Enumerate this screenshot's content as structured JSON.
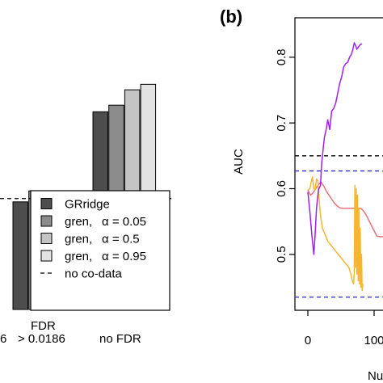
{
  "chart_data": [
    {
      "type": "bar",
      "categories": [
        "FDR > 0.0186",
        "no FDR"
      ],
      "category_labels": [
        {
          "lines": [
            "FDR",
            "> 0.0186"
          ]
        },
        {
          "lines": [
            "no FDR"
          ]
        }
      ],
      "left_cut_label": "6",
      "ylim": [
        0.55,
        0.82
      ],
      "reference_line": {
        "name": "no co-data",
        "value": 0.651
      },
      "series": [
        {
          "name": "GRridge",
          "color": "#4d4d4d",
          "values": [
            0.648,
            0.73
          ]
        },
        {
          "name": "gren, α = 0.05",
          "color": "#8c8c8c",
          "values": [
            0.658,
            0.736
          ]
        },
        {
          "name": "gren, α = 0.5",
          "color": "#c4c4c4",
          "values": [
            0.654,
            0.75
          ]
        },
        {
          "name": "gren, α = 0.95",
          "color": "#e3e3e3",
          "values": [
            0.654,
            0.755
          ]
        }
      ],
      "legend": {
        "placement": "bottom-right",
        "items": [
          {
            "kind": "box",
            "color": "#4d4d4d",
            "text": "GRridge",
            "alpha": ""
          },
          {
            "kind": "box",
            "color": "#8c8c8c",
            "text": "gren,",
            "alpha": "α = 0.05"
          },
          {
            "kind": "box",
            "color": "#c4c4c4",
            "text": "gren,",
            "alpha": "α = 0.5"
          },
          {
            "kind": "box",
            "color": "#e3e3e3",
            "text": "gren,",
            "alpha": "α = 0.95"
          },
          {
            "kind": "dash",
            "color": "#000000",
            "text": "no co-data",
            "alpha": ""
          }
        ]
      }
    },
    {
      "type": "line",
      "panel_label": "(b)",
      "ylabel": "AUC",
      "xlabel": "Nu",
      "xlim": [
        -10,
        220
      ],
      "ylim": [
        0.415,
        0.86
      ],
      "xticks": [
        0,
        100
      ],
      "yticks": [
        0.5,
        0.6,
        0.7,
        0.8
      ],
      "hlines": [
        {
          "value": 0.65,
          "color": "#000000",
          "style": "dashed"
        },
        {
          "value": 0.627,
          "color": "#2a2acc",
          "style": "dashed"
        },
        {
          "value": 0.435,
          "color": "#2a2acc",
          "style": "dashed"
        }
      ],
      "series": [
        {
          "color": "#a020f0",
          "points": [
            [
              0,
              0.595
            ],
            [
              3,
              0.565
            ],
            [
              6,
              0.53
            ],
            [
              9,
              0.5
            ],
            [
              11,
              0.53
            ],
            [
              13,
              0.57
            ],
            [
              16,
              0.598
            ],
            [
              19,
              0.605
            ],
            [
              21,
              0.64
            ],
            [
              23,
              0.66
            ],
            [
              25,
              0.678
            ],
            [
              28,
              0.692
            ],
            [
              30,
              0.705
            ],
            [
              33,
              0.69
            ],
            [
              36,
              0.718
            ],
            [
              39,
              0.722
            ],
            [
              42,
              0.73
            ],
            [
              45,
              0.745
            ],
            [
              48,
              0.76
            ],
            [
              51,
              0.77
            ],
            [
              54,
              0.785
            ],
            [
              57,
              0.79
            ],
            [
              60,
              0.792
            ],
            [
              63,
              0.8
            ],
            [
              66,
              0.805
            ],
            [
              68,
              0.812
            ],
            [
              70,
              0.822
            ],
            [
              72,
              0.818
            ],
            [
              74,
              0.812
            ],
            [
              76,
              0.815
            ],
            [
              78,
              0.818
            ],
            [
              80,
              0.82
            ],
            [
              82,
              0.82
            ]
          ]
        },
        {
          "color": "#f5b632",
          "points": [
            [
              0,
              0.598
            ],
            [
              3,
              0.6
            ],
            [
              5,
              0.61
            ],
            [
              7,
              0.618
            ],
            [
              9,
              0.6
            ],
            [
              11,
              0.598
            ],
            [
              13,
              0.615
            ],
            [
              15,
              0.612
            ],
            [
              17,
              0.585
            ],
            [
              19,
              0.56
            ],
            [
              22,
              0.54
            ],
            [
              26,
              0.53
            ],
            [
              30,
              0.52
            ],
            [
              34,
              0.515
            ],
            [
              38,
              0.51
            ],
            [
              42,
              0.505
            ],
            [
              46,
              0.5
            ],
            [
              50,
              0.495
            ],
            [
              54,
              0.49
            ],
            [
              58,
              0.485
            ],
            [
              62,
              0.48
            ],
            [
              65,
              0.47
            ],
            [
              67,
              0.46
            ],
            [
              69,
              0.455
            ],
            [
              70,
              0.472
            ],
            [
              71,
              0.605
            ],
            [
              72,
              0.48
            ],
            [
              73,
              0.6
            ],
            [
              74,
              0.47
            ],
            [
              75,
              0.59
            ],
            [
              76,
              0.46
            ],
            [
              77,
              0.57
            ],
            [
              78,
              0.455
            ],
            [
              79,
              0.54
            ],
            [
              80,
              0.45
            ],
            [
              81,
              0.5
            ],
            [
              82,
              0.445
            ],
            [
              83,
              0.455
            ]
          ]
        },
        {
          "color": "#e8737a",
          "points": [
            [
              0,
              0.598
            ],
            [
              4,
              0.59
            ],
            [
              8,
              0.594
            ],
            [
              12,
              0.6
            ],
            [
              16,
              0.606
            ],
            [
              20,
              0.61
            ],
            [
              24,
              0.604
            ],
            [
              28,
              0.596
            ],
            [
              32,
              0.59
            ],
            [
              36,
              0.584
            ],
            [
              40,
              0.578
            ],
            [
              44,
              0.574
            ],
            [
              48,
              0.571
            ],
            [
              52,
              0.57
            ],
            [
              56,
              0.57
            ],
            [
              60,
              0.57
            ],
            [
              64,
              0.57
            ],
            [
              68,
              0.57
            ],
            [
              72,
              0.57
            ],
            [
              76,
              0.57
            ],
            [
              80,
              0.57
            ],
            [
              84,
              0.566
            ],
            [
              88,
              0.56
            ],
            [
              92,
              0.552
            ],
            [
              96,
              0.544
            ],
            [
              100,
              0.536
            ],
            [
              104,
              0.528
            ],
            [
              108,
              0.527
            ],
            [
              120,
              0.527
            ],
            [
              160,
              0.527
            ],
            [
              220,
              0.527
            ]
          ]
        }
      ]
    }
  ]
}
